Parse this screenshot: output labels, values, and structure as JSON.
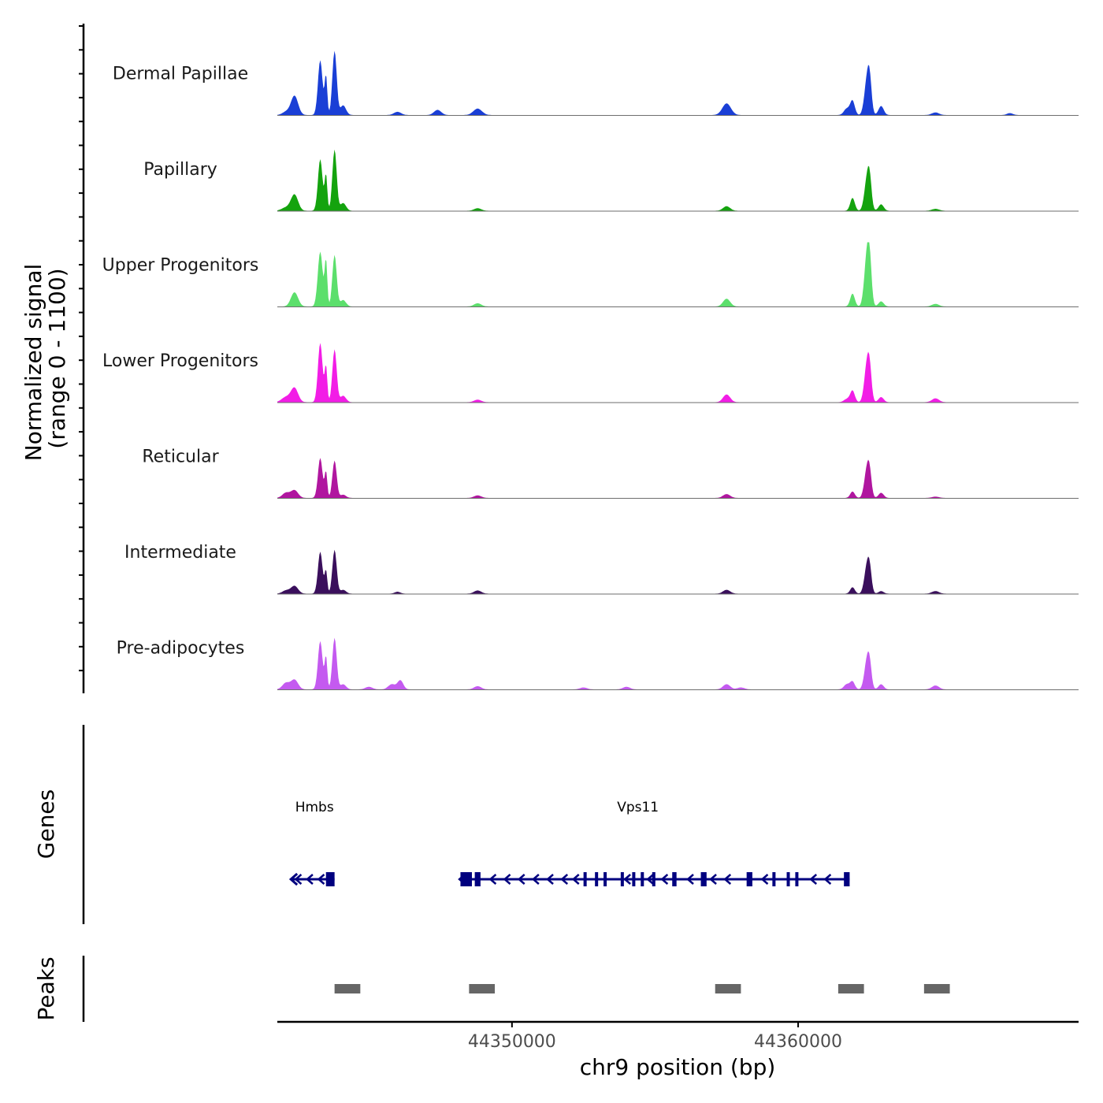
{
  "chart_data": {
    "type": "area",
    "chromosome": "chr9",
    "xlabel": "chr9 position (bp)",
    "xlim": [
      44341800,
      44369800
    ],
    "xticks": [
      44350000,
      44360000
    ],
    "xtick_labels": [
      "44350000",
      "44360000"
    ],
    "signal_ylabel_line1": "Normalized signal",
    "signal_ylabel_line2": "(range 0 - 1100)",
    "ylim": [
      0,
      1100
    ],
    "genes_label": "Genes",
    "peaks_label": "Peaks",
    "tracks": [
      {
        "name": "Dermal Papillae",
        "color": "#1a3fd6",
        "peaks": [
          [
            44342100,
            5,
            250
          ],
          [
            44342400,
            30,
            250
          ],
          [
            44343300,
            85,
            160
          ],
          [
            44343500,
            60,
            90
          ],
          [
            44343800,
            100,
            150
          ],
          [
            44344100,
            15,
            200
          ],
          [
            44346000,
            5,
            250
          ],
          [
            44347400,
            8,
            250
          ],
          [
            44348800,
            10,
            300
          ],
          [
            44357500,
            18,
            300
          ],
          [
            44361700,
            10,
            200
          ],
          [
            44361900,
            22,
            160
          ],
          [
            44362400,
            50,
            180
          ],
          [
            44362500,
            45,
            140
          ],
          [
            44362900,
            14,
            180
          ],
          [
            44364800,
            4,
            250
          ],
          [
            44367400,
            3,
            200
          ]
        ]
      },
      {
        "name": "Papillary",
        "color": "#14a30e",
        "peaks": [
          [
            44342100,
            5,
            300
          ],
          [
            44342400,
            25,
            250
          ],
          [
            44343300,
            80,
            160
          ],
          [
            44343500,
            55,
            90
          ],
          [
            44343800,
            95,
            150
          ],
          [
            44344100,
            12,
            200
          ],
          [
            44348800,
            4,
            250
          ],
          [
            44357500,
            7,
            250
          ],
          [
            44361900,
            20,
            160
          ],
          [
            44362400,
            45,
            180
          ],
          [
            44362500,
            40,
            140
          ],
          [
            44362900,
            10,
            180
          ],
          [
            44364800,
            3,
            250
          ]
        ]
      },
      {
        "name": "Upper Progenitors",
        "color": "#5cdf6c",
        "peaks": [
          [
            44342400,
            22,
            250
          ],
          [
            44343300,
            85,
            170
          ],
          [
            44343500,
            70,
            90
          ],
          [
            44343800,
            80,
            150
          ],
          [
            44344100,
            10,
            200
          ],
          [
            44348800,
            5,
            250
          ],
          [
            44357500,
            12,
            250
          ],
          [
            44361900,
            20,
            160
          ],
          [
            44362400,
            75,
            180
          ],
          [
            44362500,
            55,
            140
          ],
          [
            44362900,
            8,
            180
          ],
          [
            44364800,
            4,
            250
          ]
        ]
      },
      {
        "name": "Lower Progenitors",
        "color": "#f21de6",
        "peaks": [
          [
            44342100,
            8,
            300
          ],
          [
            44342400,
            22,
            250
          ],
          [
            44343300,
            92,
            160
          ],
          [
            44343500,
            55,
            90
          ],
          [
            44343800,
            82,
            150
          ],
          [
            44344100,
            10,
            200
          ],
          [
            44348800,
            4,
            250
          ],
          [
            44357500,
            12,
            250
          ],
          [
            44361700,
            5,
            200
          ],
          [
            44361900,
            18,
            160
          ],
          [
            44362400,
            55,
            180
          ],
          [
            44362500,
            40,
            140
          ],
          [
            44362900,
            8,
            180
          ],
          [
            44364800,
            6,
            250
          ]
        ]
      },
      {
        "name": "Reticular",
        "color": "#b0169f",
        "peaks": [
          [
            44342100,
            8,
            250
          ],
          [
            44342400,
            12,
            250
          ],
          [
            44343300,
            62,
            160
          ],
          [
            44343500,
            40,
            90
          ],
          [
            44343800,
            58,
            150
          ],
          [
            44344100,
            5,
            200
          ],
          [
            44348800,
            4,
            250
          ],
          [
            44357500,
            6,
            250
          ],
          [
            44361900,
            10,
            160
          ],
          [
            44362400,
            42,
            180
          ],
          [
            44362500,
            30,
            140
          ],
          [
            44362900,
            8,
            180
          ],
          [
            44364800,
            2,
            250
          ]
        ]
      },
      {
        "name": "Intermediate",
        "color": "#3a0f5c",
        "peaks": [
          [
            44342100,
            5,
            250
          ],
          [
            44342400,
            12,
            250
          ],
          [
            44343300,
            65,
            160
          ],
          [
            44343500,
            35,
            90
          ],
          [
            44343800,
            68,
            150
          ],
          [
            44344100,
            6,
            200
          ],
          [
            44346000,
            3,
            200
          ],
          [
            44348800,
            5,
            250
          ],
          [
            44357500,
            6,
            250
          ],
          [
            44361900,
            10,
            160
          ],
          [
            44362400,
            40,
            180
          ],
          [
            44362500,
            30,
            140
          ],
          [
            44362900,
            4,
            180
          ],
          [
            44364800,
            4,
            250
          ]
        ]
      },
      {
        "name": "Pre-adipocytes",
        "color": "#c45af0",
        "peaks": [
          [
            44342100,
            10,
            250
          ],
          [
            44342400,
            15,
            250
          ],
          [
            44343300,
            75,
            160
          ],
          [
            44343500,
            50,
            90
          ],
          [
            44343800,
            80,
            150
          ],
          [
            44344100,
            8,
            200
          ],
          [
            44345000,
            4,
            250
          ],
          [
            44345800,
            8,
            250
          ],
          [
            44346100,
            14,
            200
          ],
          [
            44348800,
            5,
            250
          ],
          [
            44352500,
            3,
            250
          ],
          [
            44354000,
            4,
            250
          ],
          [
            44357500,
            8,
            250
          ],
          [
            44358000,
            3,
            250
          ],
          [
            44361700,
            8,
            200
          ],
          [
            44361900,
            12,
            160
          ],
          [
            44362400,
            42,
            180
          ],
          [
            44362500,
            30,
            140
          ],
          [
            44362900,
            8,
            180
          ],
          [
            44364800,
            6,
            250
          ]
        ]
      }
    ],
    "genes": [
      {
        "name": "Hmbs",
        "start": 44342300,
        "end": 44343800,
        "strand": "-",
        "label_pos": 44343100,
        "exons": [
          [
            44343500,
            44343800
          ],
          [
            44343600,
            44343700
          ]
        ],
        "arrows": [
          44342500,
          44342900,
          44343300
        ]
      },
      {
        "name": "Vps11",
        "start": 44348200,
        "end": 44361800,
        "strand": "-",
        "label_pos": 44354400,
        "exons": [
          [
            44348200,
            44348600
          ],
          [
            44348700,
            44348900
          ],
          [
            44352500,
            44352600
          ],
          [
            44352900,
            44353000
          ],
          [
            44353200,
            44353300
          ],
          [
            44353800,
            44353900
          ],
          [
            44354200,
            44354300
          ],
          [
            44354500,
            44354600
          ],
          [
            44354900,
            44355000
          ],
          [
            44355600,
            44355750
          ],
          [
            44356600,
            44356800
          ],
          [
            44358200,
            44358400
          ],
          [
            44359100,
            44359200
          ],
          [
            44359600,
            44359700
          ],
          [
            44359900,
            44360000
          ],
          [
            44361600,
            44361800
          ]
        ],
        "arrows": [
          44349300,
          44349800,
          44350300,
          44350800,
          44351300,
          44351800,
          44352200,
          44354000,
          44354800,
          44355300,
          44356200,
          44357000,
          44357500,
          44358800,
          44360500,
          44361000
        ]
      }
    ],
    "peaks_regions": [
      [
        44343800,
        44344700
      ],
      [
        44348500,
        44349400
      ],
      [
        44357100,
        44358000
      ],
      [
        44361400,
        44362300
      ],
      [
        44364400,
        44365300
      ]
    ]
  }
}
